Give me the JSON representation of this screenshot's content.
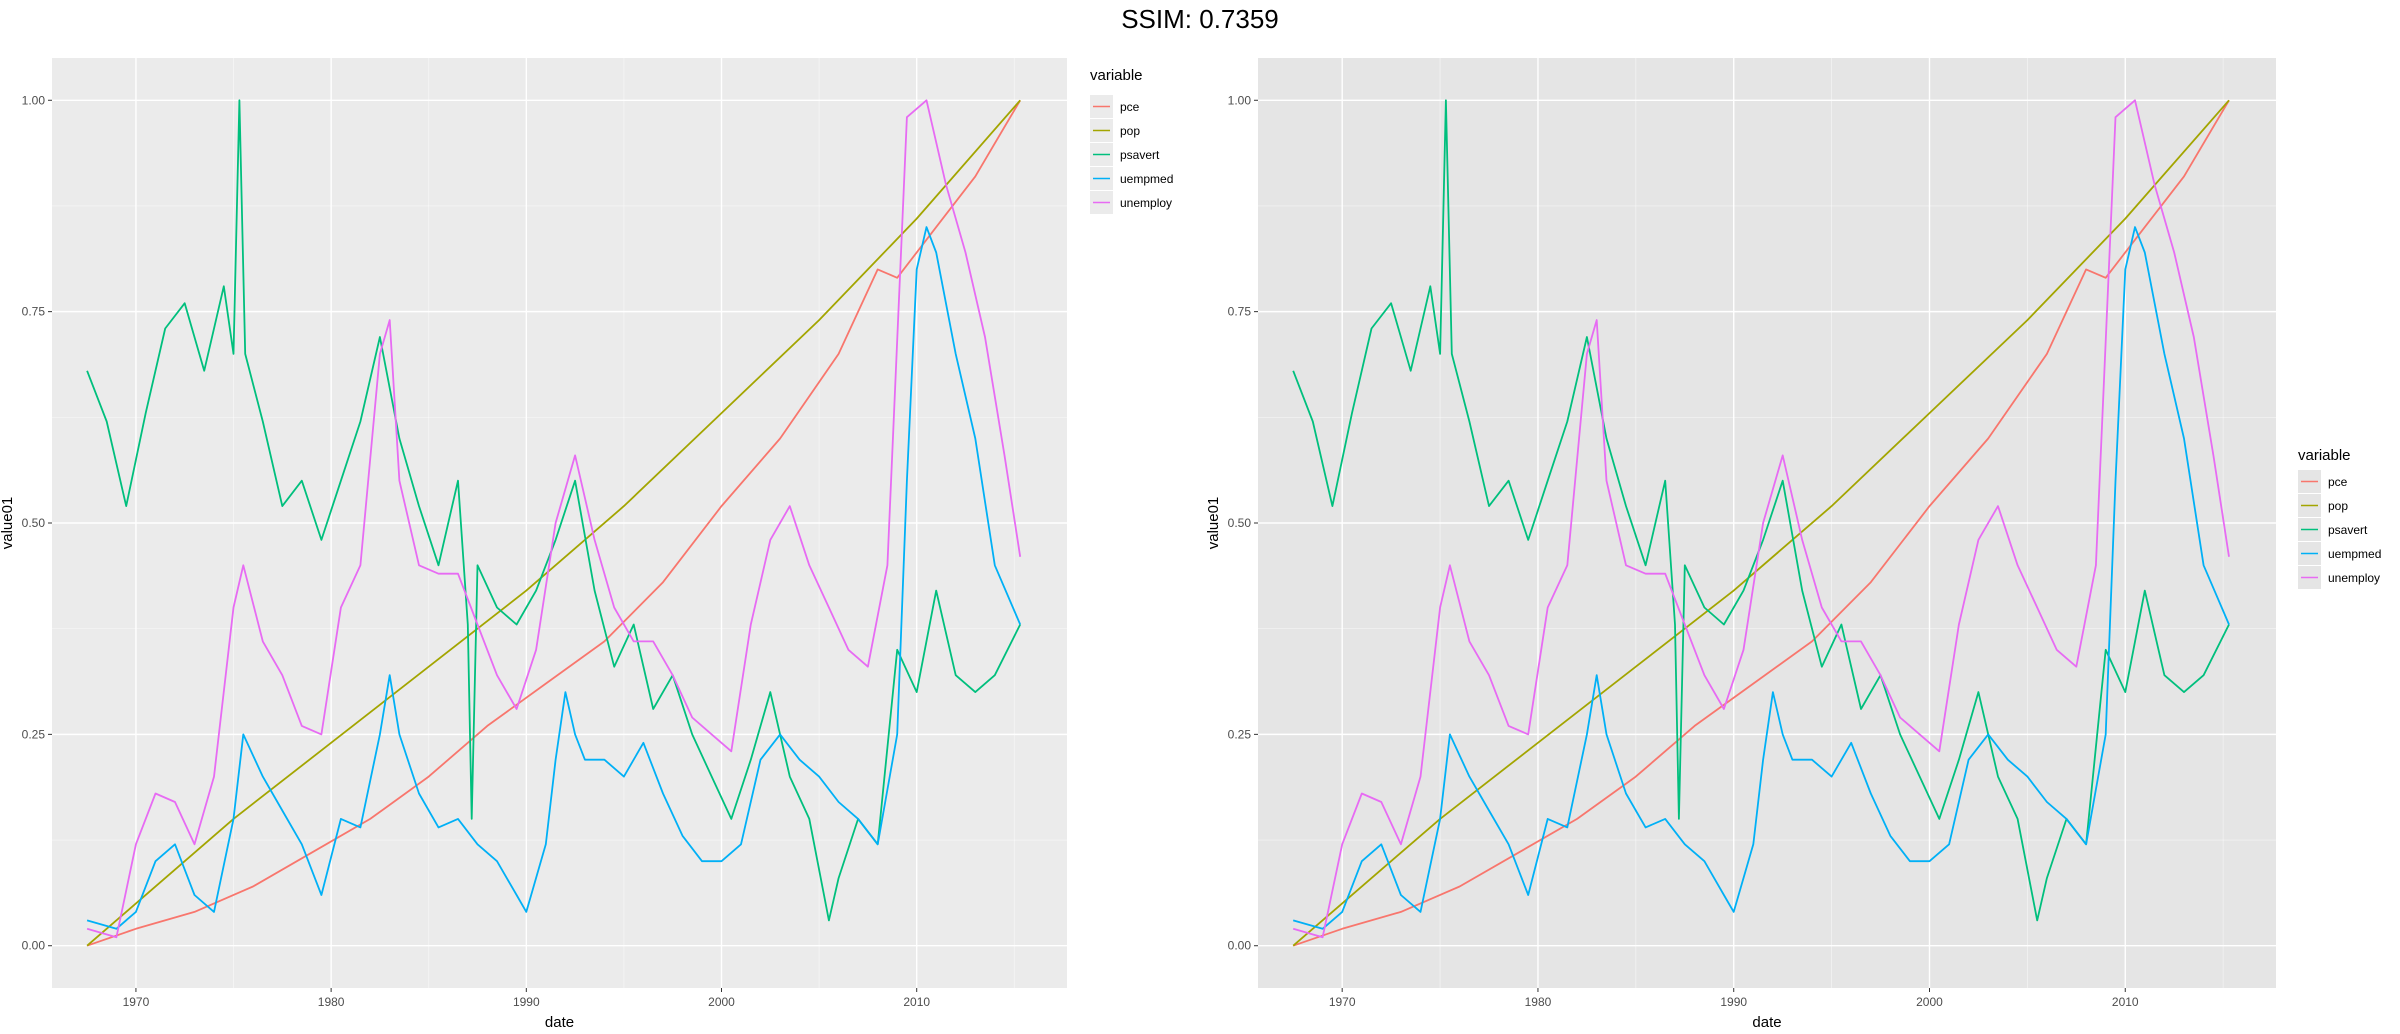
{
  "header": {
    "title": "SSIM: 0.7359"
  },
  "chart_data": [
    {
      "type": "line",
      "title": "",
      "xlabel": "date",
      "ylabel": "value01",
      "xlim": [
        1965.7,
        2017.7
      ],
      "ylim": [
        -0.05,
        1.05
      ],
      "x_ticks": [
        1970,
        1980,
        1990,
        2000,
        2010
      ],
      "x_tick_labels": [
        "1970",
        "1980",
        "1990",
        "2000",
        "2010"
      ],
      "y_ticks": [
        0,
        0.25,
        0.5,
        0.75,
        1
      ],
      "y_tick_labels": [
        "0.00",
        "0.25",
        "0.50",
        "0.75",
        "1.00"
      ],
      "grid": true,
      "panel_background": "#ebebeb",
      "legend": {
        "title": "variable",
        "position": "right-top"
      },
      "series": [
        {
          "name": "pce",
          "color": "#F8766D",
          "x": [
            1967.5,
            1970,
            1973,
            1976,
            1979,
            1982,
            1985,
            1988,
            1991,
            1994,
            1997,
            2000,
            2003,
            2006,
            2008,
            2009,
            2011,
            2013,
            2015.3
          ],
          "y": [
            0,
            0.02,
            0.04,
            0.07,
            0.11,
            0.15,
            0.2,
            0.26,
            0.31,
            0.36,
            0.43,
            0.52,
            0.6,
            0.7,
            0.8,
            0.79,
            0.85,
            0.91,
            1.0
          ]
        },
        {
          "name": "pop",
          "color": "#A3A500",
          "x": [
            1967.5,
            1975,
            1980,
            1985,
            1990,
            1995,
            2000,
            2005,
            2010,
            2015.3
          ],
          "y": [
            0,
            0.15,
            0.24,
            0.33,
            0.42,
            0.52,
            0.63,
            0.74,
            0.86,
            1.0
          ]
        },
        {
          "name": "psavert",
          "color": "#00BF7D",
          "x": [
            1967.5,
            1968.5,
            1969.5,
            1970.5,
            1971.5,
            1972.5,
            1973.5,
            1974.5,
            1975,
            1975.3,
            1975.6,
            1976.5,
            1977.5,
            1978.5,
            1979.5,
            1980.5,
            1981.5,
            1982.5,
            1983.5,
            1984.5,
            1985.5,
            1986.5,
            1987,
            1987.2,
            1987.5,
            1988.5,
            1989.5,
            1990.5,
            1991.5,
            1992.5,
            1993.5,
            1994.5,
            1995.5,
            1996.5,
            1997.5,
            1998.5,
            1999.5,
            2000.5,
            2001.5,
            2002.5,
            2003.5,
            2004.5,
            2005.5,
            2006,
            2007,
            2008,
            2009,
            2010,
            2011,
            2012,
            2013,
            2014,
            2015.3
          ],
          "y": [
            0.68,
            0.62,
            0.52,
            0.63,
            0.73,
            0.76,
            0.68,
            0.78,
            0.7,
            1.0,
            0.7,
            0.62,
            0.52,
            0.55,
            0.48,
            0.55,
            0.62,
            0.72,
            0.6,
            0.52,
            0.45,
            0.55,
            0.38,
            0.15,
            0.45,
            0.4,
            0.38,
            0.42,
            0.48,
            0.55,
            0.42,
            0.33,
            0.38,
            0.28,
            0.32,
            0.25,
            0.2,
            0.15,
            0.22,
            0.3,
            0.2,
            0.15,
            0.03,
            0.08,
            0.15,
            0.12,
            0.35,
            0.3,
            0.42,
            0.32,
            0.3,
            0.32,
            0.38
          ]
        },
        {
          "name": "uempmed",
          "color": "#00B0F6",
          "x": [
            1967.5,
            1969,
            1970,
            1971,
            1972,
            1973,
            1974,
            1975,
            1975.5,
            1976.5,
            1977.5,
            1978.5,
            1979.5,
            1980.5,
            1981.5,
            1982.5,
            1983,
            1983.5,
            1984.5,
            1985.5,
            1986.5,
            1987.5,
            1988.5,
            1989.5,
            1990,
            1991,
            1991.5,
            1992,
            1992.5,
            1993,
            1994,
            1995,
            1996,
            1997,
            1998,
            1999,
            2000,
            2001,
            2002,
            2003,
            2004,
            2005,
            2006,
            2007,
            2008,
            2009,
            2009.5,
            2010,
            2010.5,
            2011,
            2012,
            2013,
            2014,
            2015.3
          ],
          "y": [
            0.03,
            0.02,
            0.04,
            0.1,
            0.12,
            0.06,
            0.04,
            0.15,
            0.25,
            0.2,
            0.16,
            0.12,
            0.06,
            0.15,
            0.14,
            0.25,
            0.32,
            0.25,
            0.18,
            0.14,
            0.15,
            0.12,
            0.1,
            0.06,
            0.04,
            0.12,
            0.22,
            0.3,
            0.25,
            0.22,
            0.22,
            0.2,
            0.24,
            0.18,
            0.13,
            0.1,
            0.1,
            0.12,
            0.22,
            0.25,
            0.22,
            0.2,
            0.17,
            0.15,
            0.12,
            0.25,
            0.55,
            0.8,
            0.85,
            0.82,
            0.7,
            0.6,
            0.45,
            0.38
          ]
        },
        {
          "name": "unemploy",
          "color": "#E76BF3",
          "x": [
            1967.5,
            1969,
            1970,
            1971,
            1972,
            1973,
            1974,
            1975,
            1975.5,
            1976.5,
            1977.5,
            1978.5,
            1979.5,
            1980.5,
            1981.5,
            1982.5,
            1983,
            1983.5,
            1984.5,
            1985.5,
            1986.5,
            1987.5,
            1988.5,
            1989.5,
            1990.5,
            1991.5,
            1992.5,
            1993.5,
            1994.5,
            1995.5,
            1996.5,
            1997.5,
            1998.5,
            1999.5,
            2000.5,
            2001.5,
            2002.5,
            2003.5,
            2004.5,
            2005.5,
            2006.5,
            2007.5,
            2008.5,
            2009.5,
            2010.5,
            2011.5,
            2012.5,
            2013.5,
            2014.5,
            2015.3
          ],
          "y": [
            0.02,
            0.01,
            0.12,
            0.18,
            0.17,
            0.12,
            0.2,
            0.4,
            0.45,
            0.36,
            0.32,
            0.26,
            0.25,
            0.4,
            0.45,
            0.7,
            0.74,
            0.55,
            0.45,
            0.44,
            0.44,
            0.38,
            0.32,
            0.28,
            0.35,
            0.5,
            0.58,
            0.48,
            0.4,
            0.36,
            0.36,
            0.32,
            0.27,
            0.25,
            0.23,
            0.38,
            0.48,
            0.52,
            0.45,
            0.4,
            0.35,
            0.33,
            0.45,
            0.98,
            1.0,
            0.9,
            0.82,
            0.72,
            0.58,
            0.46
          ]
        }
      ]
    },
    {
      "type": "line",
      "title": "",
      "xlabel": "date",
      "ylabel": "value01",
      "xlim": [
        1965.7,
        2017.7
      ],
      "ylim": [
        -0.05,
        1.05
      ],
      "x_ticks": [
        1970,
        1980,
        1990,
        2000,
        2010
      ],
      "x_tick_labels": [
        "1970",
        "1980",
        "1990",
        "2000",
        "2010"
      ],
      "y_ticks": [
        0,
        0.25,
        0.5,
        0.75,
        1
      ],
      "y_tick_labels": [
        "0.00",
        "0.25",
        "0.50",
        "0.75",
        "1.00"
      ],
      "grid": true,
      "panel_background": "#e5e5e5",
      "legend": {
        "title": "variable",
        "position": "right-middle"
      },
      "series": [
        {
          "name": "pce",
          "color": "#F8766D",
          "x": [
            1967.5,
            1970,
            1973,
            1976,
            1979,
            1982,
            1985,
            1988,
            1991,
            1994,
            1997,
            2000,
            2003,
            2006,
            2008,
            2009,
            2011,
            2013,
            2015.3
          ],
          "y": [
            0,
            0.02,
            0.04,
            0.07,
            0.11,
            0.15,
            0.2,
            0.26,
            0.31,
            0.36,
            0.43,
            0.52,
            0.6,
            0.7,
            0.8,
            0.79,
            0.85,
            0.91,
            1.0
          ]
        },
        {
          "name": "pop",
          "color": "#A3A500",
          "x": [
            1967.5,
            1975,
            1980,
            1985,
            1990,
            1995,
            2000,
            2005,
            2010,
            2015.3
          ],
          "y": [
            0,
            0.15,
            0.24,
            0.33,
            0.42,
            0.52,
            0.63,
            0.74,
            0.86,
            1.0
          ]
        },
        {
          "name": "psavert",
          "color": "#00BF7D",
          "x": [
            1967.5,
            1968.5,
            1969.5,
            1970.5,
            1971.5,
            1972.5,
            1973.5,
            1974.5,
            1975,
            1975.3,
            1975.6,
            1976.5,
            1977.5,
            1978.5,
            1979.5,
            1980.5,
            1981.5,
            1982.5,
            1983.5,
            1984.5,
            1985.5,
            1986.5,
            1987,
            1987.2,
            1987.5,
            1988.5,
            1989.5,
            1990.5,
            1991.5,
            1992.5,
            1993.5,
            1994.5,
            1995.5,
            1996.5,
            1997.5,
            1998.5,
            1999.5,
            2000.5,
            2001.5,
            2002.5,
            2003.5,
            2004.5,
            2005.5,
            2006,
            2007,
            2008,
            2009,
            2010,
            2011,
            2012,
            2013,
            2014,
            2015.3
          ],
          "y": [
            0.68,
            0.62,
            0.52,
            0.63,
            0.73,
            0.76,
            0.68,
            0.78,
            0.7,
            1.0,
            0.7,
            0.62,
            0.52,
            0.55,
            0.48,
            0.55,
            0.62,
            0.72,
            0.6,
            0.52,
            0.45,
            0.55,
            0.38,
            0.15,
            0.45,
            0.4,
            0.38,
            0.42,
            0.48,
            0.55,
            0.42,
            0.33,
            0.38,
            0.28,
            0.32,
            0.25,
            0.2,
            0.15,
            0.22,
            0.3,
            0.2,
            0.15,
            0.03,
            0.08,
            0.15,
            0.12,
            0.35,
            0.3,
            0.42,
            0.32,
            0.3,
            0.32,
            0.38
          ]
        },
        {
          "name": "uempmed",
          "color": "#00B0F6",
          "x": [
            1967.5,
            1969,
            1970,
            1971,
            1972,
            1973,
            1974,
            1975,
            1975.5,
            1976.5,
            1977.5,
            1978.5,
            1979.5,
            1980.5,
            1981.5,
            1982.5,
            1983,
            1983.5,
            1984.5,
            1985.5,
            1986.5,
            1987.5,
            1988.5,
            1989.5,
            1990,
            1991,
            1991.5,
            1992,
            1992.5,
            1993,
            1994,
            1995,
            1996,
            1997,
            1998,
            1999,
            2000,
            2001,
            2002,
            2003,
            2004,
            2005,
            2006,
            2007,
            2008,
            2009,
            2009.5,
            2010,
            2010.5,
            2011,
            2012,
            2013,
            2014,
            2015.3
          ],
          "y": [
            0.03,
            0.02,
            0.04,
            0.1,
            0.12,
            0.06,
            0.04,
            0.15,
            0.25,
            0.2,
            0.16,
            0.12,
            0.06,
            0.15,
            0.14,
            0.25,
            0.32,
            0.25,
            0.18,
            0.14,
            0.15,
            0.12,
            0.1,
            0.06,
            0.04,
            0.12,
            0.22,
            0.3,
            0.25,
            0.22,
            0.22,
            0.2,
            0.24,
            0.18,
            0.13,
            0.1,
            0.1,
            0.12,
            0.22,
            0.25,
            0.22,
            0.2,
            0.17,
            0.15,
            0.12,
            0.25,
            0.55,
            0.8,
            0.85,
            0.82,
            0.7,
            0.6,
            0.45,
            0.38
          ]
        },
        {
          "name": "unemploy",
          "color": "#E76BF3",
          "x": [
            1967.5,
            1969,
            1970,
            1971,
            1972,
            1973,
            1974,
            1975,
            1975.5,
            1976.5,
            1977.5,
            1978.5,
            1979.5,
            1980.5,
            1981.5,
            1982.5,
            1983,
            1983.5,
            1984.5,
            1985.5,
            1986.5,
            1987.5,
            1988.5,
            1989.5,
            1990.5,
            1991.5,
            1992.5,
            1993.5,
            1994.5,
            1995.5,
            1996.5,
            1997.5,
            1998.5,
            1999.5,
            2000.5,
            2001.5,
            2002.5,
            2003.5,
            2004.5,
            2005.5,
            2006.5,
            2007.5,
            2008.5,
            2009.5,
            2010.5,
            2011.5,
            2012.5,
            2013.5,
            2014.5,
            2015.3
          ],
          "y": [
            0.02,
            0.01,
            0.12,
            0.18,
            0.17,
            0.12,
            0.2,
            0.4,
            0.45,
            0.36,
            0.32,
            0.26,
            0.25,
            0.4,
            0.45,
            0.7,
            0.74,
            0.55,
            0.45,
            0.44,
            0.44,
            0.38,
            0.32,
            0.28,
            0.35,
            0.5,
            0.58,
            0.48,
            0.4,
            0.36,
            0.36,
            0.32,
            0.27,
            0.25,
            0.23,
            0.38,
            0.48,
            0.52,
            0.45,
            0.4,
            0.35,
            0.33,
            0.45,
            0.98,
            1.0,
            0.9,
            0.82,
            0.72,
            0.58,
            0.46
          ]
        }
      ]
    }
  ]
}
